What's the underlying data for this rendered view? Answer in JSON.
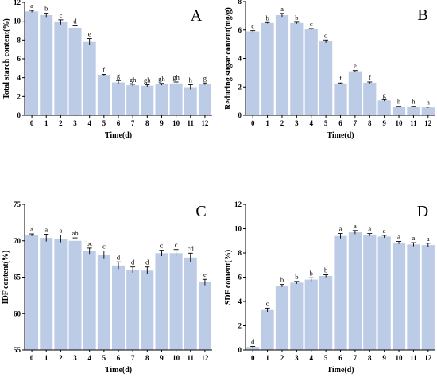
{
  "colors": {
    "bar": "#bccbe6",
    "axis": "#000000",
    "error": "#000000"
  },
  "chart_data": [
    {
      "type": "bar",
      "panel_label": "A",
      "categories": [
        "0",
        "1",
        "2",
        "3",
        "4",
        "5",
        "6",
        "7",
        "8",
        "9",
        "10",
        "11",
        "12"
      ],
      "values": [
        11.05,
        10.65,
        9.9,
        9.3,
        7.8,
        4.3,
        3.5,
        3.2,
        3.15,
        3.3,
        3.4,
        3.0,
        3.35
      ],
      "errors": [
        0.1,
        0.2,
        0.25,
        0.2,
        0.35,
        0.05,
        0.2,
        0.1,
        0.1,
        0.1,
        0.15,
        0.25,
        0.1
      ],
      "sig_labels": [
        "a",
        "b",
        "c",
        "d",
        "e",
        "f",
        "g",
        "gh",
        "gh",
        "gh",
        "gh",
        "h",
        "g"
      ],
      "xlabel": "Time(d)",
      "ylabel": "Total starch content(%)",
      "ylim": [
        0,
        12
      ],
      "yticks": [
        0,
        2,
        4,
        6,
        8,
        10,
        12
      ],
      "grid": false
    },
    {
      "type": "bar",
      "panel_label": "B",
      "categories": [
        "0",
        "1",
        "2",
        "3",
        "4",
        "5",
        "6",
        "7",
        "8",
        "9",
        "10",
        "11",
        "12"
      ],
      "values": [
        5.9,
        6.5,
        7.05,
        6.5,
        6.05,
        5.2,
        2.25,
        3.1,
        2.3,
        1.05,
        0.6,
        0.6,
        0.55
      ],
      "errors": [
        0.05,
        0.03,
        0.12,
        0.05,
        0.05,
        0.1,
        0.03,
        0.05,
        0.05,
        0.05,
        0.03,
        0.03,
        0.03
      ],
      "sig_labels": [
        "c",
        "b",
        "a",
        "b",
        "c",
        "d",
        "f",
        "e",
        "f",
        "g",
        "h",
        "h",
        "h"
      ],
      "xlabel": "Time(d)",
      "ylabel": "Reducing sugar content(mg/g)",
      "ylim": [
        0,
        8
      ],
      "yticks": [
        0,
        2,
        4,
        6,
        8
      ],
      "grid": false
    },
    {
      "type": "bar",
      "panel_label": "C",
      "categories": [
        "0",
        "1",
        "2",
        "3",
        "4",
        "5",
        "6",
        "7",
        "8",
        "9",
        "10",
        "11",
        "12"
      ],
      "values": [
        70.8,
        70.4,
        70.3,
        70.0,
        68.6,
        68.1,
        66.6,
        66.0,
        65.9,
        68.3,
        68.3,
        67.7,
        64.3
      ],
      "errors": [
        0.15,
        0.5,
        0.5,
        0.4,
        0.4,
        0.5,
        0.5,
        0.4,
        0.5,
        0.4,
        0.5,
        0.6,
        0.4
      ],
      "sig_labels": [
        "a",
        "a",
        "a",
        "ab",
        "bc",
        "c",
        "d",
        "d",
        "d",
        "c",
        "c",
        "cd",
        "e"
      ],
      "xlabel": "Time(d)",
      "ylabel": "IDF content(%)",
      "ylim": [
        55,
        75
      ],
      "yticks": [
        55,
        60,
        65,
        70,
        75
      ],
      "grid": false
    },
    {
      "type": "bar",
      "panel_label": "D",
      "categories": [
        "0",
        "1",
        "2",
        "3",
        "4",
        "5",
        "6",
        "7",
        "8",
        "9",
        "10",
        "11",
        "12"
      ],
      "values": [
        0.25,
        3.3,
        5.3,
        5.55,
        5.8,
        6.1,
        9.4,
        9.7,
        9.5,
        9.35,
        8.85,
        8.7,
        8.65
      ],
      "errors": [
        0.05,
        0.15,
        0.1,
        0.1,
        0.15,
        0.1,
        0.2,
        0.15,
        0.1,
        0.1,
        0.1,
        0.15,
        0.15
      ],
      "sig_labels": [
        "d",
        "c",
        "b",
        "b",
        "b",
        "b",
        "a",
        "a",
        "a",
        "a",
        "a",
        "a",
        "a"
      ],
      "xlabel": "Time(d)",
      "ylabel": "SDF content(%)",
      "ylim": [
        0,
        12
      ],
      "yticks": [
        0,
        2,
        4,
        6,
        8,
        10,
        12
      ],
      "grid": false
    }
  ]
}
